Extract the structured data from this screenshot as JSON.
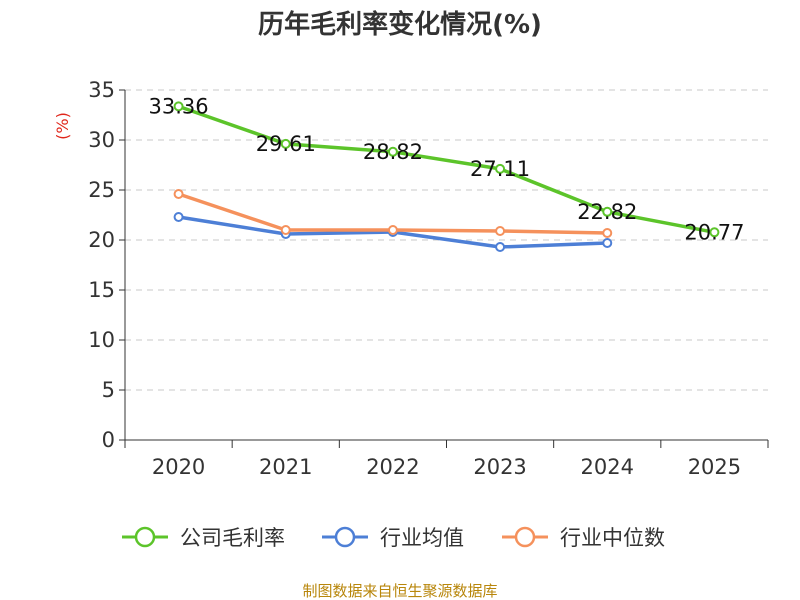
{
  "chart_data": {
    "type": "line",
    "title": "历年毛利率变化情况(%)",
    "ylabel": "(%)",
    "xlabel": "",
    "categories": [
      "2020",
      "2021",
      "2022",
      "2023",
      "2024",
      "2025"
    ],
    "ylim": [
      0,
      35
    ],
    "yticks": [
      "0",
      "5",
      "10",
      "15",
      "20",
      "25",
      "30",
      "35"
    ],
    "grid": true,
    "legend_position": "bottom",
    "series": [
      {
        "name": "公司毛利率",
        "color": "#5cc42a",
        "values": [
          33.36,
          29.61,
          28.82,
          27.11,
          22.82,
          20.77
        ],
        "labels": [
          "33.36",
          "29.61",
          "28.82",
          "27.11",
          "22.82",
          "20.77"
        ]
      },
      {
        "name": "行业均值",
        "color": "#4d7fd6",
        "values": [
          22.3,
          20.6,
          20.8,
          19.3,
          19.7,
          null
        ]
      },
      {
        "name": "行业中位数",
        "color": "#f5915c",
        "values": [
          24.6,
          21.0,
          21.0,
          20.9,
          20.7,
          null
        ]
      }
    ]
  },
  "footer": {
    "source": "制图数据来自恒生聚源数据库"
  }
}
